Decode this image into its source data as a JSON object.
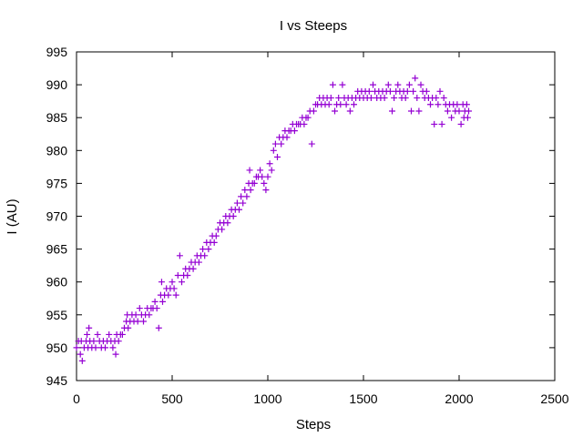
{
  "chart_data": {
    "type": "scatter",
    "title": "I vs Steeps",
    "xlabel": "Steps",
    "ylabel": "I (AU)",
    "xlim": [
      0,
      2500
    ],
    "ylim": [
      945,
      995
    ],
    "x_ticks": [
      "0",
      "500",
      "1000",
      "1500",
      "2000",
      "2500"
    ],
    "y_ticks": [
      "945",
      "950",
      "955",
      "960",
      "965",
      "970",
      "975",
      "980",
      "985",
      "990",
      "995"
    ],
    "grid": false,
    "legend": "none",
    "marker": "plus",
    "series": [
      {
        "color": "#9400d3",
        "points": [
          [
            0,
            950
          ],
          [
            10,
            951
          ],
          [
            20,
            949
          ],
          [
            25,
            951
          ],
          [
            30,
            948
          ],
          [
            40,
            950
          ],
          [
            50,
            951
          ],
          [
            55,
            952
          ],
          [
            60,
            950
          ],
          [
            65,
            953
          ],
          [
            70,
            951
          ],
          [
            80,
            950
          ],
          [
            90,
            951
          ],
          [
            100,
            950
          ],
          [
            110,
            952
          ],
          [
            120,
            951
          ],
          [
            130,
            950
          ],
          [
            140,
            951
          ],
          [
            150,
            950
          ],
          [
            160,
            951
          ],
          [
            170,
            952
          ],
          [
            180,
            951
          ],
          [
            190,
            950
          ],
          [
            200,
            951
          ],
          [
            205,
            949
          ],
          [
            210,
            952
          ],
          [
            220,
            951
          ],
          [
            230,
            952
          ],
          [
            240,
            952
          ],
          [
            250,
            953
          ],
          [
            260,
            954
          ],
          [
            265,
            955
          ],
          [
            270,
            953
          ],
          [
            280,
            954
          ],
          [
            290,
            955
          ],
          [
            300,
            954
          ],
          [
            310,
            955
          ],
          [
            320,
            954
          ],
          [
            330,
            956
          ],
          [
            340,
            955
          ],
          [
            350,
            954
          ],
          [
            360,
            955
          ],
          [
            370,
            956
          ],
          [
            380,
            955
          ],
          [
            390,
            956
          ],
          [
            400,
            956
          ],
          [
            410,
            957
          ],
          [
            420,
            956
          ],
          [
            430,
            953
          ],
          [
            440,
            958
          ],
          [
            445,
            960
          ],
          [
            450,
            957
          ],
          [
            460,
            958
          ],
          [
            470,
            959
          ],
          [
            480,
            958
          ],
          [
            490,
            959
          ],
          [
            500,
            960
          ],
          [
            510,
            959
          ],
          [
            520,
            958
          ],
          [
            530,
            961
          ],
          [
            540,
            964
          ],
          [
            550,
            960
          ],
          [
            560,
            961
          ],
          [
            570,
            962
          ],
          [
            580,
            961
          ],
          [
            590,
            962
          ],
          [
            600,
            963
          ],
          [
            610,
            962
          ],
          [
            620,
            963
          ],
          [
            630,
            964
          ],
          [
            640,
            963
          ],
          [
            650,
            964
          ],
          [
            660,
            965
          ],
          [
            670,
            964
          ],
          [
            680,
            966
          ],
          [
            690,
            965
          ],
          [
            700,
            966
          ],
          [
            710,
            967
          ],
          [
            720,
            966
          ],
          [
            730,
            967
          ],
          [
            740,
            968
          ],
          [
            750,
            969
          ],
          [
            760,
            968
          ],
          [
            770,
            969
          ],
          [
            780,
            970
          ],
          [
            790,
            969
          ],
          [
            800,
            970
          ],
          [
            810,
            971
          ],
          [
            820,
            970
          ],
          [
            830,
            971
          ],
          [
            840,
            972
          ],
          [
            850,
            971
          ],
          [
            860,
            973
          ],
          [
            870,
            972
          ],
          [
            880,
            974
          ],
          [
            890,
            973
          ],
          [
            900,
            975
          ],
          [
            905,
            977
          ],
          [
            910,
            974
          ],
          [
            920,
            975
          ],
          [
            930,
            975
          ],
          [
            940,
            976
          ],
          [
            950,
            976
          ],
          [
            960,
            977
          ],
          [
            970,
            976
          ],
          [
            980,
            975
          ],
          [
            990,
            974
          ],
          [
            1000,
            976
          ],
          [
            1010,
            978
          ],
          [
            1020,
            977
          ],
          [
            1030,
            980
          ],
          [
            1040,
            981
          ],
          [
            1050,
            979
          ],
          [
            1060,
            982
          ],
          [
            1070,
            981
          ],
          [
            1080,
            982
          ],
          [
            1090,
            983
          ],
          [
            1100,
            982
          ],
          [
            1110,
            983
          ],
          [
            1120,
            983
          ],
          [
            1130,
            984
          ],
          [
            1140,
            983
          ],
          [
            1150,
            984
          ],
          [
            1160,
            984
          ],
          [
            1170,
            984
          ],
          [
            1180,
            985
          ],
          [
            1190,
            984
          ],
          [
            1200,
            985
          ],
          [
            1210,
            985
          ],
          [
            1220,
            986
          ],
          [
            1230,
            981
          ],
          [
            1240,
            986
          ],
          [
            1250,
            987
          ],
          [
            1260,
            987
          ],
          [
            1270,
            988
          ],
          [
            1280,
            987
          ],
          [
            1290,
            988
          ],
          [
            1300,
            987
          ],
          [
            1310,
            988
          ],
          [
            1320,
            987
          ],
          [
            1330,
            988
          ],
          [
            1340,
            990
          ],
          [
            1350,
            986
          ],
          [
            1360,
            987
          ],
          [
            1370,
            988
          ],
          [
            1380,
            987
          ],
          [
            1390,
            990
          ],
          [
            1400,
            988
          ],
          [
            1410,
            987
          ],
          [
            1420,
            988
          ],
          [
            1430,
            986
          ],
          [
            1440,
            988
          ],
          [
            1450,
            987
          ],
          [
            1460,
            988
          ],
          [
            1470,
            989
          ],
          [
            1480,
            988
          ],
          [
            1490,
            989
          ],
          [
            1500,
            988
          ],
          [
            1510,
            989
          ],
          [
            1520,
            988
          ],
          [
            1530,
            989
          ],
          [
            1540,
            988
          ],
          [
            1550,
            990
          ],
          [
            1560,
            989
          ],
          [
            1570,
            988
          ],
          [
            1580,
            989
          ],
          [
            1590,
            988
          ],
          [
            1600,
            989
          ],
          [
            1610,
            988
          ],
          [
            1620,
            989
          ],
          [
            1630,
            990
          ],
          [
            1640,
            989
          ],
          [
            1650,
            986
          ],
          [
            1660,
            988
          ],
          [
            1670,
            989
          ],
          [
            1680,
            990
          ],
          [
            1690,
            989
          ],
          [
            1700,
            988
          ],
          [
            1710,
            989
          ],
          [
            1720,
            988
          ],
          [
            1730,
            989
          ],
          [
            1740,
            990
          ],
          [
            1750,
            986
          ],
          [
            1760,
            989
          ],
          [
            1770,
            991
          ],
          [
            1780,
            988
          ],
          [
            1790,
            986
          ],
          [
            1800,
            990
          ],
          [
            1810,
            989
          ],
          [
            1820,
            988
          ],
          [
            1830,
            989
          ],
          [
            1840,
            988
          ],
          [
            1850,
            987
          ],
          [
            1860,
            988
          ],
          [
            1870,
            984
          ],
          [
            1880,
            988
          ],
          [
            1890,
            987
          ],
          [
            1900,
            989
          ],
          [
            1910,
            984
          ],
          [
            1920,
            988
          ],
          [
            1930,
            987
          ],
          [
            1940,
            986
          ],
          [
            1950,
            987
          ],
          [
            1960,
            985
          ],
          [
            1970,
            987
          ],
          [
            1980,
            986
          ],
          [
            1990,
            987
          ],
          [
            2000,
            986
          ],
          [
            2010,
            984
          ],
          [
            2020,
            987
          ],
          [
            2025,
            985
          ],
          [
            2030,
            986
          ],
          [
            2040,
            987
          ],
          [
            2045,
            985
          ],
          [
            2050,
            986
          ]
        ]
      }
    ]
  }
}
